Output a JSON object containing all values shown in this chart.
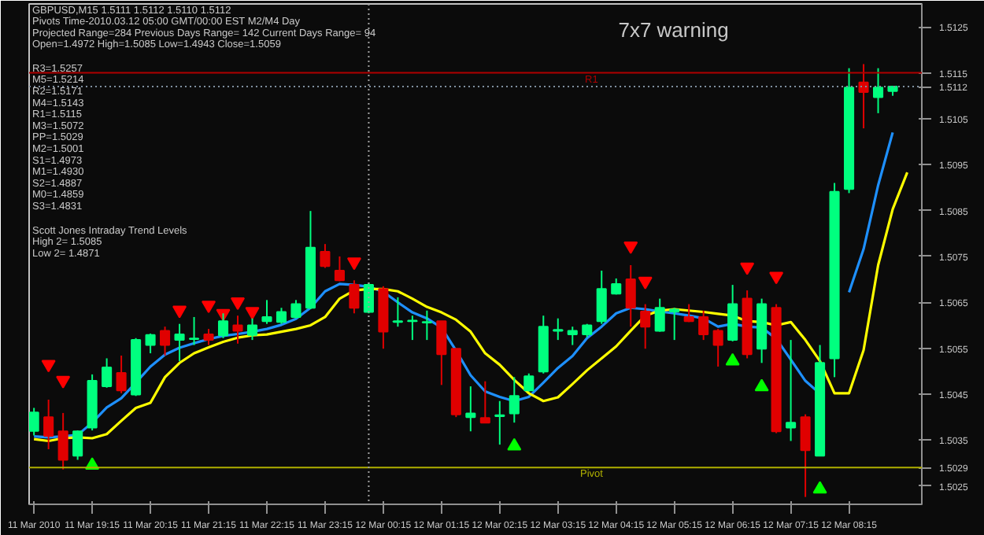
{
  "chart_data": {
    "type": "candlestick",
    "title": "GBPUSD,M15  1.5111 1.5112 1.5110 1.5112",
    "x": [
      "2010-03-11T18:15",
      "2010-03-11T18:30",
      "2010-03-11T18:45",
      "2010-03-11T19:00",
      "2010-03-11T19:15",
      "2010-03-11T19:30",
      "2010-03-11T19:45",
      "2010-03-11T20:00",
      "2010-03-11T20:15",
      "2010-03-11T20:30",
      "2010-03-11T20:45",
      "2010-03-11T21:00",
      "2010-03-11T21:15",
      "2010-03-11T21:30",
      "2010-03-11T21:45",
      "2010-03-11T22:00",
      "2010-03-11T22:15",
      "2010-03-11T22:30",
      "2010-03-11T22:45",
      "2010-03-11T23:00",
      "2010-03-11T23:15",
      "2010-03-11T23:30",
      "2010-03-11T23:45",
      "2010-03-12T00:00",
      "2010-03-12T00:15",
      "2010-03-12T00:30",
      "2010-03-12T00:45",
      "2010-03-12T01:00",
      "2010-03-12T01:15",
      "2010-03-12T01:30",
      "2010-03-12T01:45",
      "2010-03-12T02:00",
      "2010-03-12T02:15",
      "2010-03-12T02:30",
      "2010-03-12T02:45",
      "2010-03-12T03:00",
      "2010-03-12T03:15",
      "2010-03-12T03:30",
      "2010-03-12T03:45",
      "2010-03-12T04:00",
      "2010-03-12T04:15",
      "2010-03-12T04:30",
      "2010-03-12T04:45",
      "2010-03-12T05:00",
      "2010-03-12T05:15",
      "2010-03-12T05:30",
      "2010-03-12T05:45",
      "2010-03-12T06:00",
      "2010-03-12T06:15",
      "2010-03-12T06:30",
      "2010-03-12T06:45",
      "2010-03-12T07:00",
      "2010-03-12T07:15",
      "2010-03-12T07:30",
      "2010-03-12T07:45",
      "2010-03-12T08:00",
      "2010-03-12T08:15",
      "2010-03-12T08:30",
      "2010-03-12T08:45",
      "2010-03-12T09:00"
    ],
    "ohlc": [
      [
        1.5037,
        1.5042,
        1.5036,
        1.5041
      ],
      [
        1.504,
        1.50438,
        1.5033,
        1.50359
      ],
      [
        1.50369,
        1.50409,
        1.50286,
        1.50307
      ],
      [
        1.50316,
        1.50371,
        1.50307,
        1.50369
      ],
      [
        1.50377,
        1.50493,
        1.50371,
        1.50479
      ],
      [
        1.50467,
        1.50528,
        1.50464,
        1.50508
      ],
      [
        1.50496,
        1.50534,
        1.50452,
        1.50458
      ],
      [
        1.50449,
        1.50572,
        1.50446,
        1.50568
      ],
      [
        1.50557,
        1.50582,
        1.50539,
        1.50579
      ],
      [
        1.50588,
        1.50597,
        1.50534,
        1.50557
      ],
      [
        1.50568,
        1.50603,
        1.50522,
        1.5058
      ],
      [
        1.5057,
        1.50618,
        1.50557,
        1.50571
      ],
      [
        1.5058,
        1.50592,
        1.50557,
        1.50568
      ],
      [
        1.50578,
        1.50626,
        1.50572,
        1.50609
      ],
      [
        1.506,
        1.50621,
        1.5056,
        1.50588
      ],
      [
        1.50579,
        1.50615,
        1.50568,
        1.506
      ],
      [
        1.50609,
        1.50655,
        1.50603,
        1.50618
      ],
      [
        1.50607,
        1.50638,
        1.50603,
        1.50629
      ],
      [
        1.50618,
        1.50655,
        1.50615,
        1.50646
      ],
      [
        1.50638,
        1.50849,
        1.50635,
        1.50769
      ],
      [
        1.5076,
        1.50777,
        1.50725,
        1.50729
      ],
      [
        1.50719,
        1.5075,
        1.50696,
        1.50698
      ],
      [
        1.50688,
        1.50698,
        1.50626,
        1.50638
      ],
      [
        1.50629,
        1.50693,
        1.50626,
        1.50688
      ],
      [
        1.50679,
        1.50685,
        1.50549,
        1.50586
      ],
      [
        1.50607,
        1.50661,
        1.50597,
        1.50609
      ],
      [
        1.50609,
        1.50621,
        1.50568,
        1.5061
      ],
      [
        1.50606,
        1.50632,
        1.50568,
        1.50607
      ],
      [
        1.50609,
        1.50609,
        1.5047,
        1.50537
      ],
      [
        1.50549,
        1.50549,
        1.504,
        1.50406
      ],
      [
        1.504,
        1.50467,
        1.50369,
        1.50408
      ],
      [
        1.50398,
        1.50478,
        1.50388,
        1.50388
      ],
      [
        1.50402,
        1.50435,
        1.5034,
        1.50404
      ],
      [
        1.50408,
        1.50487,
        1.50388,
        1.50446
      ],
      [
        1.50458,
        1.50495,
        1.50456,
        1.50489
      ],
      [
        1.50499,
        1.50621,
        1.50495,
        1.50597
      ],
      [
        1.50588,
        1.50615,
        1.50568,
        1.5059
      ],
      [
        1.5058,
        1.50597,
        1.50557,
        1.50588
      ],
      [
        1.5058,
        1.50603,
        1.50574,
        1.506
      ],
      [
        1.50609,
        1.50719,
        1.50603,
        1.50679
      ],
      [
        1.50669,
        1.50702,
        1.50667,
        1.5069
      ],
      [
        1.507,
        1.50731,
        1.50597,
        1.50638
      ],
      [
        1.5063,
        1.50646,
        1.50549,
        1.50597
      ],
      [
        1.50588,
        1.50658,
        1.50586,
        1.50638
      ],
      [
        1.5063,
        1.50638,
        1.50568,
        1.50634
      ],
      [
        1.50618,
        1.50646,
        1.50607,
        1.50609
      ],
      [
        1.50618,
        1.50632,
        1.50568,
        1.5058
      ],
      [
        1.50588,
        1.50592,
        1.5051,
        1.50557
      ],
      [
        1.50568,
        1.50688,
        1.50565,
        1.50646
      ],
      [
        1.50658,
        1.50676,
        1.50528,
        1.50537
      ],
      [
        1.50549,
        1.50658,
        1.50518,
        1.50646
      ],
      [
        1.50638,
        1.50646,
        1.50365,
        1.50369
      ],
      [
        1.50377,
        1.50568,
        1.50348,
        1.50388
      ],
      [
        1.504,
        1.50406,
        1.50226,
        1.50328
      ],
      [
        1.50316,
        1.50557,
        1.50316,
        1.50518
      ],
      [
        1.50528,
        1.5091,
        1.50487,
        1.50891
      ],
      [
        1.50897,
        1.5116,
        1.50888,
        1.51118
      ],
      [
        1.51129,
        1.51169,
        1.51029,
        1.51108
      ],
      [
        1.51097,
        1.5116,
        1.51062,
        1.51118
      ],
      [
        1.5111,
        1.5112,
        1.511,
        1.5112
      ]
    ],
    "colors": [
      "#00ff7f",
      "#e00000",
      "#e00000",
      "#00ff7f",
      "#00ff7f",
      "#00ff7f",
      "#e00000",
      "#00ff7f",
      "#00ff7f",
      "#e00000",
      "#00ff7f",
      "#00ff7f",
      "#e00000",
      "#00ff7f",
      "#e00000",
      "#00ff7f",
      "#00ff7f",
      "#00ff7f",
      "#00ff7f",
      "#00ff7f",
      "#e00000",
      "#e00000",
      "#e00000",
      "#00ff7f",
      "#e00000",
      "#00ff7f",
      "#00ff7f",
      "#00ff7f",
      "#e00000",
      "#e00000",
      "#00ff7f",
      "#e00000",
      "#00ff7f",
      "#00ff7f",
      "#00ff7f",
      "#00ff7f",
      "#00ff7f",
      "#00ff7f",
      "#00ff7f",
      "#00ff7f",
      "#00ff7f",
      "#e00000",
      "#e00000",
      "#00ff7f",
      "#00ff7f",
      "#e00000",
      "#e00000",
      "#e00000",
      "#00ff7f",
      "#e00000",
      "#00ff7f",
      "#e00000",
      "#00ff7f",
      "#e00000",
      "#00ff7f",
      "#00ff7f",
      "#00ff7f",
      "#e00000",
      "#00ff7f",
      "#00ff7f"
    ],
    "series": [
      {
        "type": "line",
        "color": "#1e90ff",
        "values": [
          1.50358,
          1.50356,
          1.50358,
          1.50361,
          1.50388,
          1.50421,
          1.50441,
          1.50475,
          1.5051,
          1.50536,
          1.50551,
          1.50561,
          1.5057,
          1.50577,
          1.50581,
          1.50586,
          1.50592,
          1.50601,
          1.50614,
          1.50638,
          1.50674,
          1.5069,
          1.50688,
          1.50684,
          1.50673,
          1.5065,
          1.50628,
          1.50615,
          1.50595,
          1.50545,
          1.50491,
          1.50456,
          1.50444,
          1.50435,
          1.50444,
          1.50475,
          1.50507,
          1.50533,
          1.50572,
          1.50597,
          1.50626,
          1.50638,
          1.50635,
          1.5063,
          1.50626,
          1.50621,
          1.50615,
          1.50597,
          1.50603,
          1.50597,
          1.50595,
          1.50571,
          1.50525,
          1.50479,
          1.50451,
          null,
          1.50672,
          1.50766,
          1.50905,
          1.5102
        ]
      },
      {
        "type": "line",
        "color": "#ffff00",
        "x": [
          "2010-03-11T18:15",
          "2010-03-11T18:30",
          "2010-03-11T18:45",
          "2010-03-11T19:00",
          "2010-03-11T19:15",
          "2010-03-11T19:30",
          "2010-03-11T19:45",
          "2010-03-11T20:00",
          "2010-03-11T20:15",
          "2010-03-11T20:30",
          "2010-03-11T20:45",
          "2010-03-11T21:00",
          "2010-03-11T21:15",
          "2010-03-11T21:30",
          "2010-03-11T21:45",
          "2010-03-11T22:00",
          "2010-03-11T22:15",
          "2010-03-11T22:30",
          "2010-03-11T22:45",
          "2010-03-11T23:00",
          "2010-03-11T23:15",
          "2010-03-11T23:30",
          "2010-03-11T23:45",
          "2010-03-12T00:00",
          "2010-03-12T00:15",
          "2010-03-12T00:30",
          "2010-03-12T00:45",
          "2010-03-12T01:00",
          "2010-03-12T01:15",
          "2010-03-12T01:30",
          "2010-03-12T01:45",
          "2010-03-12T02:00",
          "2010-03-12T02:15",
          "2010-03-12T02:30",
          "2010-03-12T02:45",
          "2010-03-12T03:00",
          "2010-03-12T03:15",
          "2010-03-12T03:30",
          "2010-03-12T03:45",
          "2010-03-12T04:00",
          "2010-03-12T04:15",
          "2010-03-12T04:30",
          "2010-03-12T04:45",
          "2010-03-12T05:00",
          "2010-03-12T05:15",
          "2010-03-12T05:30",
          "2010-03-12T05:45",
          "2010-03-12T06:00",
          "2010-03-12T06:15",
          "2010-03-12T06:30",
          "2010-03-12T06:45",
          "2010-03-12T07:00",
          "2010-03-12T07:15",
          "2010-03-12T07:30",
          "2010-03-12T07:45",
          "2010-03-12T08:00",
          "2010-03-12T08:15",
          "2010-03-12T08:30",
          "2010-03-12T08:45",
          "2010-03-12T09:00",
          "2010-03-12T09:15"
        ],
        "values": [
          1.50352,
          1.50348,
          1.50354,
          1.50356,
          1.50354,
          1.50363,
          1.50392,
          1.5042,
          1.50431,
          1.50487,
          1.50518,
          1.50539,
          1.50552,
          1.50564,
          1.50573,
          1.50578,
          1.5058,
          1.50586,
          1.50592,
          1.506,
          1.50618,
          1.50658,
          1.50676,
          1.50679,
          1.50679,
          1.50674,
          1.50658,
          1.5064,
          1.50628,
          1.50612,
          1.50586,
          1.50539,
          1.50514,
          1.50481,
          1.50452,
          1.50435,
          1.50443,
          1.50472,
          1.50502,
          1.50528,
          1.50554,
          1.50588,
          1.50621,
          1.50632,
          1.50635,
          1.50632,
          1.50629,
          1.50625,
          1.50621,
          1.50609,
          1.50607,
          1.506,
          1.50607,
          1.50568,
          1.50522,
          1.50452,
          1.50452,
          1.50546,
          1.50731,
          1.50853,
          1.50933
        ]
      },
      {
        "type": "scatter",
        "color": "#ff0000",
        "marker": "triangle_down",
        "x": [
          "2010-03-11T18:30",
          "2010-03-11T18:45",
          "2010-03-11T20:45",
          "2010-03-11T21:15",
          "2010-03-11T21:30",
          "2010-03-11T21:45",
          "2010-03-11T22:00",
          "2010-03-11T23:45",
          "2010-03-12T04:30",
          "2010-03-12T04:45",
          "2010-03-12T06:30",
          "2010-03-12T07:00"
        ],
        "values": [
          1.50515,
          1.5048,
          1.50633,
          1.50644,
          1.50626,
          1.50651,
          1.5063,
          1.50738,
          1.50773,
          1.50696,
          1.50727,
          1.50707
        ]
      },
      {
        "type": "scatter",
        "color": "#00ff00",
        "marker": "triangle",
        "x": [
          "2010-03-11T19:15",
          "2010-03-12T02:30",
          "2010-03-12T06:15",
          "2010-03-12T06:45",
          "2010-03-12T07:45"
        ],
        "values": [
          1.50295,
          1.50337,
          1.50522,
          1.50466,
          1.50243
        ]
      }
    ],
    "xlim": [
      "2010-03-11T18:10",
      "2010-03-12T09:30"
    ],
    "xticks": [
      {
        "value": "2010-03-11T18:15",
        "label": "11 Mar 2010"
      },
      {
        "value": "2010-03-11T19:15",
        "label": "11 Mar 19:15"
      },
      {
        "value": "2010-03-11T20:15",
        "label": "11 Mar 20:15"
      },
      {
        "value": "2010-03-11T21:15",
        "label": "11 Mar 21:15"
      },
      {
        "value": "2010-03-11T22:15",
        "label": "11 Mar 22:15"
      },
      {
        "value": "2010-03-11T23:15",
        "label": "11 Mar 23:15"
      },
      {
        "value": "2010-03-12T00:15",
        "label": "12 Mar 00:15"
      },
      {
        "value": "2010-03-12T01:15",
        "label": "12 Mar 01:15"
      },
      {
        "value": "2010-03-12T02:15",
        "label": "12 Mar 02:15"
      },
      {
        "value": "2010-03-12T03:15",
        "label": "12 Mar 03:15"
      },
      {
        "value": "2010-03-12T04:15",
        "label": "12 Mar 04:15"
      },
      {
        "value": "2010-03-12T05:15",
        "label": "12 Mar 05:15"
      },
      {
        "value": "2010-03-12T06:15",
        "label": "12 Mar 06:15"
      },
      {
        "value": "2010-03-12T07:15",
        "label": "12 Mar 07:15"
      },
      {
        "value": "2010-03-12T08:15",
        "label": "12 Mar 08:15"
      }
    ],
    "ylim": [
      1.5021,
      1.513
    ],
    "yticks": [
      1.5025,
      1.5029,
      1.5035,
      1.5045,
      1.5055,
      1.5065,
      1.5075,
      1.5085,
      1.5095,
      1.5105,
      1.5112,
      1.5115,
      1.5125
    ],
    "ref_lines": [
      {
        "axis": "y",
        "value": 1.5115,
        "label": "R1",
        "color": "#b00000",
        "line_style": "solid"
      },
      {
        "axis": "y",
        "value": 1.5112,
        "label": null,
        "color": "#8090a0",
        "line_style": "dotted"
      },
      {
        "axis": "y",
        "value": 1.5029,
        "label": "Pivot",
        "color": "#b0b000",
        "line_style": "solid"
      },
      {
        "axis": "x",
        "value": "2010-03-12T00:00",
        "label": null,
        "color": "#a0a0a0",
        "line_style": "dotted"
      }
    ],
    "annotations": [
      "Pivots Time-2010.03.12 05:00 GMT/00:00 EST M2/M4 Day",
      "Projected Range=284 Previous Days Range= 142 Current Days Range= 94",
      "Open=1.4972 High=1.5085 Low=1.4943 Close=1.5059",
      "R3=1.5257",
      "M5=1.5214",
      "R2=1.5171",
      "M4=1.5143",
      "R1=1.5115",
      "M3=1.5072",
      "PP=1.5029",
      "M2=1.5001",
      "S1=1.4973",
      "M1=1.4930",
      "S2=1.4887",
      "M0=1.4859",
      "S3=1.4831",
      "Scott Jones Intraday Trend Levels",
      "High 2= 1.5085",
      "Low 2= 1.4871",
      "7x7 warning"
    ],
    "grid": false
  }
}
